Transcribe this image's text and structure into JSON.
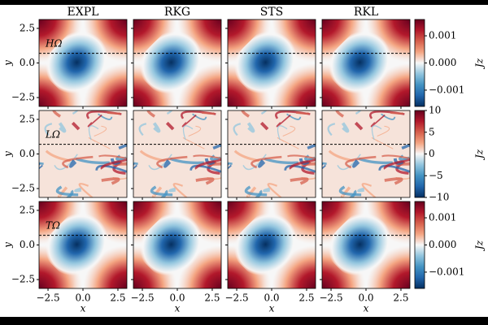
{
  "chart_data": {
    "type": "heatmap-grid",
    "columns": [
      "EXPL",
      "RKG",
      "STS",
      "RKL"
    ],
    "rows": [
      {
        "label": "HΩ",
        "pattern": "smooth",
        "clim": [
          -0.0016,
          0.0016
        ],
        "cticks": [
          {
            "value": 0.001,
            "label": "0.001"
          },
          {
            "value": 0,
            "label": "0.000"
          },
          {
            "value": -0.001,
            "label": "−0.001"
          }
        ]
      },
      {
        "label": "LΩ",
        "pattern": "turbulent",
        "clim": [
          -10,
          10
        ],
        "cticks": [
          10,
          5,
          0,
          {
            "value": -5,
            "label": "−5"
          },
          {
            "value": -10,
            "label": "−10"
          }
        ]
      },
      {
        "label": "TΩ",
        "pattern": "smooth",
        "clim": [
          -0.0016,
          0.0016
        ],
        "cticks": [
          {
            "value": 0.001,
            "label": "0.001"
          },
          {
            "value": 0,
            "label": "0.000"
          },
          {
            "value": -0.001,
            "label": "−0.001"
          }
        ]
      }
    ],
    "colorbar_label": "Jz",
    "xlabel": "x",
    "ylabel": "y",
    "xlim": [
      -3.14159,
      3.14159
    ],
    "ylim": [
      -3.14159,
      3.14159
    ],
    "xticks": [
      {
        "value": -2.5,
        "label": "−2.5"
      },
      {
        "value": 0,
        "label": "0.0"
      },
      {
        "value": 2.5,
        "label": "2.5"
      }
    ],
    "yticks": [
      {
        "value": -2.5,
        "label": "−2.5"
      },
      {
        "value": 0,
        "label": "0.0"
      },
      {
        "value": 2.5,
        "label": "2.5"
      }
    ],
    "dashed_line_y": 0.7,
    "colormap": [
      "#053061",
      "#2166ac",
      "#4393c3",
      "#92c5de",
      "#f7f7f7",
      "#f4a582",
      "#d6604d",
      "#b2182b",
      "#67001f"
    ]
  }
}
